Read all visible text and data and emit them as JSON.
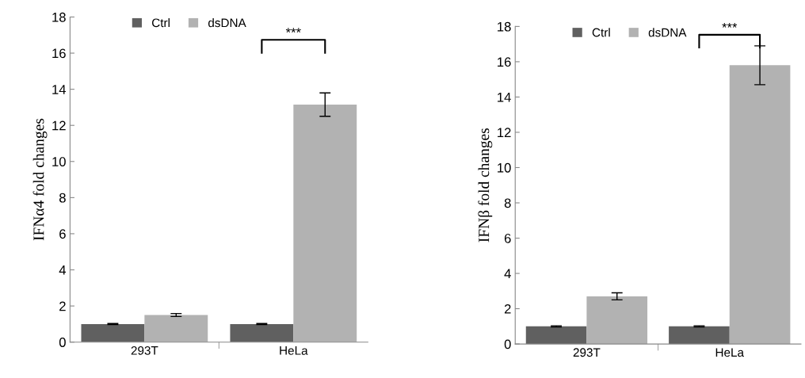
{
  "chart_data": [
    {
      "type": "bar",
      "ylabel": "IFNα4 fold changes",
      "categories": [
        "293T",
        "HeLa"
      ],
      "ylim": [
        0,
        18
      ],
      "yticks": [
        0,
        2,
        4,
        6,
        8,
        10,
        12,
        14,
        16,
        18
      ],
      "legend": "top",
      "grid": false,
      "annotations": [
        "***"
      ],
      "series": [
        {
          "name": "Ctrl",
          "color": "#606060",
          "values": [
            1,
            1
          ],
          "errors": [
            0.03,
            0.03
          ]
        },
        {
          "name": "dsDNA",
          "color": "#b2b2b2",
          "values": [
            1.5,
            13.15
          ],
          "errors": [
            0.08,
            0.65
          ]
        }
      ]
    },
    {
      "type": "bar",
      "ylabel": "IFNβ fold changes",
      "categories": [
        "293T",
        "HeLa"
      ],
      "ylim": [
        0,
        18
      ],
      "yticks": [
        0,
        2,
        4,
        6,
        8,
        10,
        12,
        14,
        16,
        18
      ],
      "legend": "top",
      "grid": false,
      "annotations": [
        "***"
      ],
      "series": [
        {
          "name": "Ctrl",
          "color": "#606060",
          "values": [
            1,
            1
          ],
          "errors": [
            0.03,
            0.03
          ]
        },
        {
          "name": "dsDNA",
          "color": "#b2b2b2",
          "values": [
            2.7,
            15.8
          ],
          "errors": [
            0.2,
            1.1
          ]
        }
      ]
    }
  ]
}
